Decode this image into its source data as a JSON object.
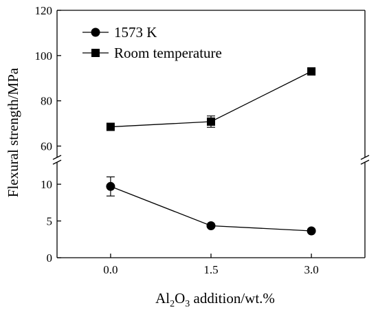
{
  "chart_data": {
    "type": "line",
    "x": [
      0.0,
      1.5,
      3.0
    ],
    "x_tick_labels": [
      "0.0",
      "1.5",
      "3.0"
    ],
    "xlim": [
      -0.8,
      3.8
    ],
    "xlabel": {
      "parts": [
        {
          "text": "Al"
        },
        {
          "text": "2",
          "sub": true
        },
        {
          "text": "O"
        },
        {
          "text": "3",
          "sub": true
        },
        {
          "text": " addition/wt.%"
        }
      ]
    },
    "ylabel": "Flexural strength/MPa",
    "y_axis_break": true,
    "y_segments": [
      {
        "ylim": [
          0,
          13
        ],
        "ticks": [
          "0",
          "5",
          "10"
        ]
      },
      {
        "ylim": [
          55,
          120
        ],
        "ticks": [
          "60",
          "80",
          "100",
          "120"
        ]
      }
    ],
    "series": [
      {
        "name": "1573 K",
        "marker": "circle",
        "segment": 0,
        "values": [
          9.7,
          4.35,
          3.65
        ],
        "error": [
          1.3,
          0.0,
          0.0
        ]
      },
      {
        "name": "Room temperature",
        "marker": "square",
        "segment": 1,
        "values": [
          68.5,
          70.8,
          93.0
        ],
        "error": [
          0.0,
          2.5,
          0.0
        ]
      }
    ],
    "legend_position": "top-left",
    "grid": false,
    "color": "#000000"
  }
}
